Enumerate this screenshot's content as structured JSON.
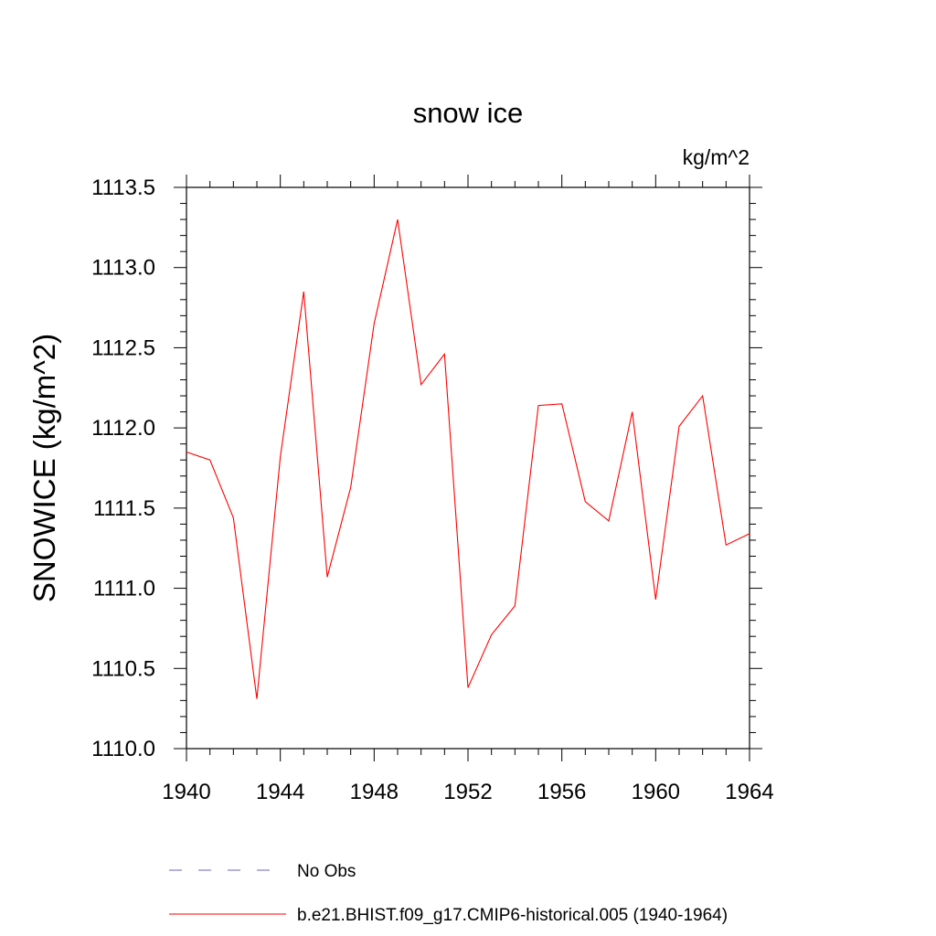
{
  "chart_data": {
    "type": "line",
    "title": "snow ice",
    "units_label": "kg/m^2",
    "ylabel": "SNOWICE  (kg/m^2)",
    "xlabel": "",
    "xlim": [
      1940,
      1964
    ],
    "ylim": [
      1110.0,
      1113.5
    ],
    "xticks": [
      1940,
      1944,
      1948,
      1952,
      1956,
      1960,
      1964
    ],
    "yticks": [
      1110.0,
      1110.5,
      1111.0,
      1111.5,
      1112.0,
      1112.5,
      1113.0,
      1113.5
    ],
    "ytick_labels": [
      "1110.0",
      "1110.5",
      "1111.0",
      "1111.5",
      "1112.0",
      "1112.5",
      "1113.0",
      "1113.5"
    ],
    "grid": false,
    "legend_placement": "bottom",
    "series": [
      {
        "name": "b.e21.BHIST.f09_g17.CMIP6-historical.005 (1940-1964)",
        "color": "#ff0000",
        "x": [
          1940,
          1941,
          1942,
          1943,
          1944,
          1945,
          1946,
          1947,
          1948,
          1949,
          1950,
          1951,
          1952,
          1953,
          1954,
          1955,
          1956,
          1957,
          1958,
          1959,
          1960,
          1961,
          1962,
          1963,
          1964
        ],
        "values": [
          1111.85,
          1111.8,
          1111.44,
          1110.31,
          1111.82,
          1112.85,
          1111.07,
          1111.63,
          1112.65,
          1113.3,
          1112.27,
          1112.46,
          1110.38,
          1110.71,
          1110.89,
          1112.14,
          1112.15,
          1111.54,
          1111.42,
          1112.1,
          1110.93,
          1112.01,
          1112.2,
          1111.27,
          1111.34
        ]
      }
    ],
    "legend": [
      {
        "label": "No Obs",
        "color": "#6666bb",
        "dash": true
      },
      {
        "label": "b.e21.BHIST.f09_g17.CMIP6-historical.005 (1940-1964)",
        "color": "#ff0000",
        "dash": false
      }
    ]
  }
}
